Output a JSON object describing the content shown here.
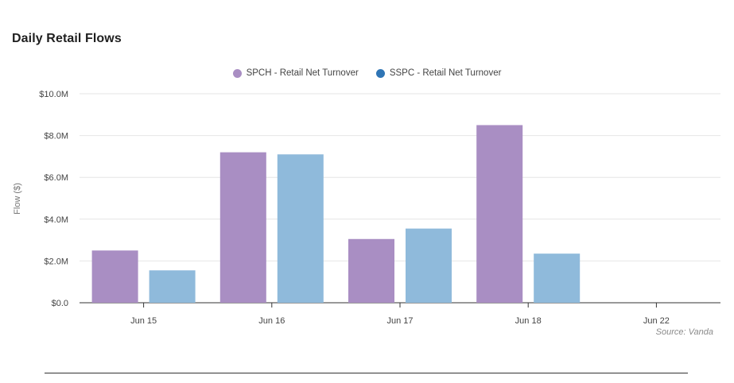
{
  "chart_data": {
    "type": "bar",
    "title": "Daily Retail Flows",
    "ylabel": "Flow ($)",
    "xlabel": "",
    "categories": [
      "Jun 15",
      "Jun 16",
      "Jun 17",
      "Jun 18",
      "Jun 22"
    ],
    "series": [
      {
        "name": "SPCH - Retail Net Turnover",
        "values": [
          2.5,
          7.2,
          3.05,
          8.5,
          null
        ]
      },
      {
        "name": "SSPC - Retail Net Turnover",
        "values": [
          1.55,
          7.1,
          3.55,
          2.35,
          null
        ]
      }
    ],
    "ylim": [
      0,
      10
    ],
    "yticks": [
      "$0.0",
      "$2.0M",
      "$4.0M",
      "$6.0M",
      "$8.0M",
      "$10.0M"
    ],
    "grid": true,
    "legend_position": "top-center",
    "legend_marker_colors": [
      "#a98ec3",
      "#2f75b5"
    ],
    "bar_colors": [
      "#a98ec3",
      "#8fbadb"
    ],
    "source": "Source: Vanda"
  }
}
